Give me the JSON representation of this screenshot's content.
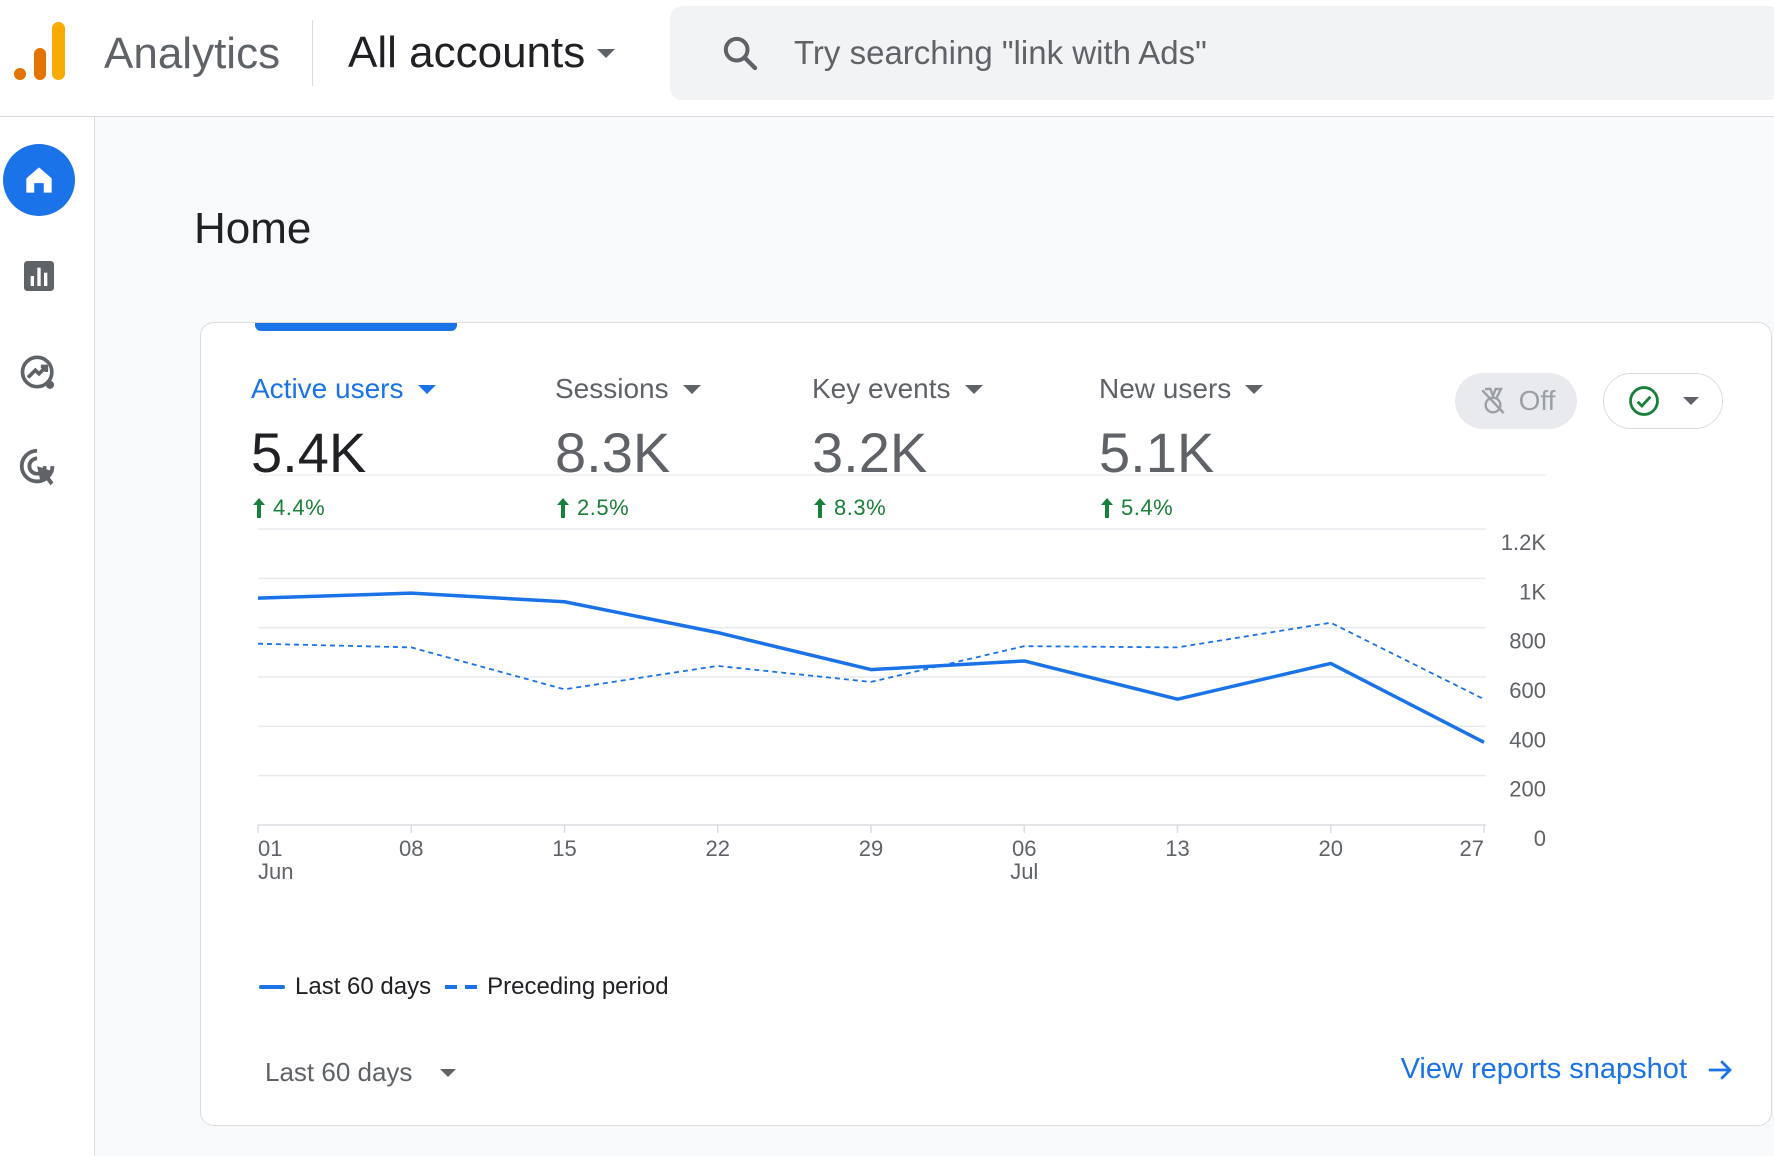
{
  "header": {
    "app_name": "Analytics",
    "account": "All accounts",
    "search_placeholder": "Try searching \"link with Ads\""
  },
  "nav": {
    "items": [
      {
        "icon": "home-icon",
        "active": true
      },
      {
        "icon": "reports-icon",
        "active": false
      },
      {
        "icon": "explore-icon",
        "active": false
      },
      {
        "icon": "advertising-icon",
        "active": false
      }
    ]
  },
  "page": {
    "title": "Home"
  },
  "metrics": [
    {
      "label": "Active users",
      "value": "5.4K",
      "change": "4.4%",
      "active": true
    },
    {
      "label": "Sessions",
      "value": "8.3K",
      "change": "2.5%",
      "active": false
    },
    {
      "label": "Key events",
      "value": "3.2K",
      "change": "8.3%",
      "active": false
    },
    {
      "label": "New users",
      "value": "5.1K",
      "change": "5.4%",
      "active": false
    }
  ],
  "controls": {
    "off_label": "Off"
  },
  "chart_data": {
    "type": "line",
    "x": [
      "01 Jun",
      "08",
      "15",
      "22",
      "29",
      "06 Jul",
      "13",
      "20",
      "27"
    ],
    "x_ticks": [
      {
        "line1": "01",
        "line2": "Jun"
      },
      {
        "line1": "08",
        "line2": ""
      },
      {
        "line1": "15",
        "line2": ""
      },
      {
        "line1": "22",
        "line2": ""
      },
      {
        "line1": "29",
        "line2": ""
      },
      {
        "line1": "06",
        "line2": "Jul"
      },
      {
        "line1": "13",
        "line2": ""
      },
      {
        "line1": "20",
        "line2": ""
      },
      {
        "line1": "27",
        "line2": ""
      }
    ],
    "series": [
      {
        "name": "Last 60 days",
        "style": "solid",
        "values": [
          920,
          940,
          905,
          780,
          630,
          665,
          510,
          655,
          335
        ]
      },
      {
        "name": "Preceding period",
        "style": "dashed",
        "values": [
          735,
          720,
          550,
          645,
          580,
          725,
          720,
          820,
          510
        ]
      }
    ],
    "y_ticks": [
      "0",
      "200",
      "400",
      "600",
      "800",
      "1K",
      "1.2K"
    ],
    "ylim": [
      0,
      1200
    ],
    "grid": true,
    "color": "#1a73e8"
  },
  "footer": {
    "range_label": "Last 60 days",
    "link_label": "View reports snapshot"
  }
}
